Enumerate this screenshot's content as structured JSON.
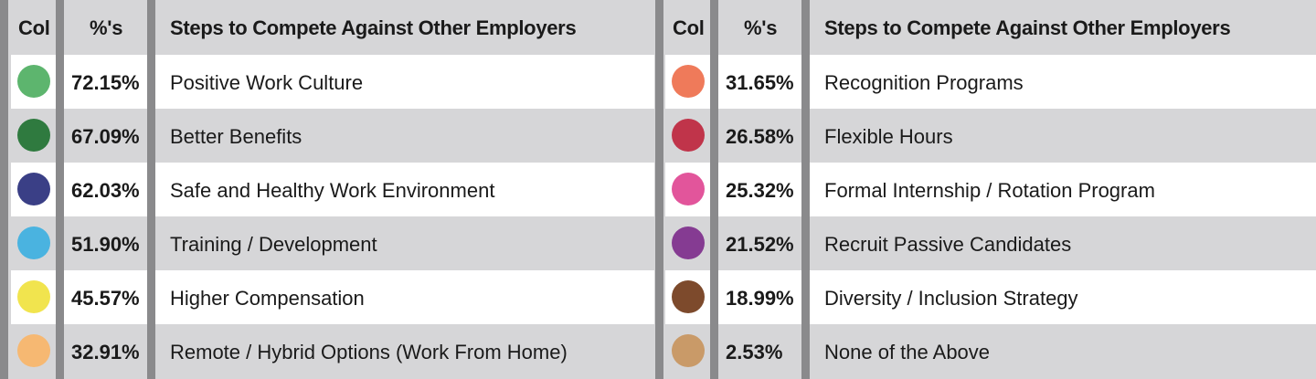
{
  "chart_data": {
    "type": "table",
    "columns": [
      "Col",
      "%'s",
      "Steps to Compete Against Other Employers"
    ],
    "left": {
      "headers": {
        "col": "Col",
        "pct": "%'s",
        "steps": "Steps to Compete Against Other Employers"
      },
      "rows": [
        {
          "color": "#5db56e",
          "value": 72.15,
          "pct": "72.15%",
          "label": "Positive Work Culture"
        },
        {
          "color": "#2f7a3f",
          "value": 67.09,
          "pct": "67.09%",
          "label": "Better Benefits"
        },
        {
          "color": "#3a3f86",
          "value": 62.03,
          "pct": "62.03%",
          "label": "Safe and Healthy Work Environment"
        },
        {
          "color": "#4ab3e0",
          "value": 51.9,
          "pct": "51.90%",
          "label": "Training / Development"
        },
        {
          "color": "#f1e44e",
          "value": 45.57,
          "pct": "45.57%",
          "label": "Higher Compensation"
        },
        {
          "color": "#f6b872",
          "value": 32.91,
          "pct": "32.91%",
          "label": "Remote / Hybrid Options (Work From Home)"
        }
      ]
    },
    "right": {
      "headers": {
        "col": "Col",
        "pct": "%'s",
        "steps": "Steps to Compete Against Other Employers"
      },
      "rows": [
        {
          "color": "#ef7a5a",
          "value": 31.65,
          "pct": "31.65%",
          "label": "Recognition Programs"
        },
        {
          "color": "#c0344a",
          "value": 26.58,
          "pct": "26.58%",
          "label": "Flexible Hours"
        },
        {
          "color": "#e2559b",
          "value": 25.32,
          "pct": "25.32%",
          "label": "Formal Internship / Rotation Program"
        },
        {
          "color": "#853b92",
          "value": 21.52,
          "pct": "21.52%",
          "label": "Recruit Passive Candidates"
        },
        {
          "color": "#7d4a2c",
          "value": 18.99,
          "pct": "18.99%",
          "label": "Diversity / Inclusion Strategy"
        },
        {
          "color": "#c99a68",
          "value": 2.53,
          "pct": "2.53%",
          "label": "None of the Above"
        }
      ]
    }
  }
}
